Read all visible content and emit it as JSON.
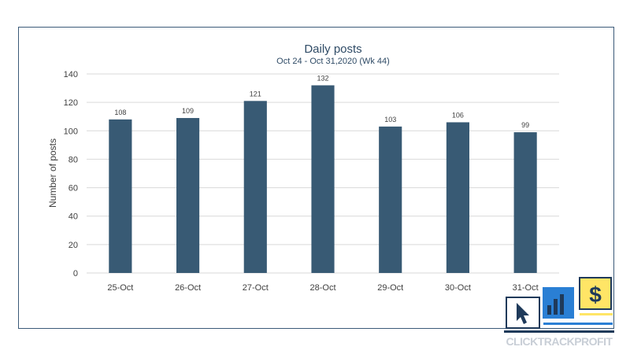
{
  "chart_data": {
    "type": "bar",
    "title": "Daily posts",
    "subtitle": "Oct 24 - Oct 31,2020 (Wk 44)",
    "xlabel": "",
    "ylabel": "Number of posts",
    "categories": [
      "25-Oct",
      "26-Oct",
      "27-Oct",
      "28-Oct",
      "29-Oct",
      "30-Oct",
      "31-Oct"
    ],
    "values": [
      108,
      109,
      121,
      132,
      103,
      106,
      99
    ],
    "ylim": [
      0,
      140
    ],
    "yticks": [
      0,
      20,
      40,
      60,
      80,
      100,
      120,
      140
    ],
    "grid": true,
    "bar_color": "#385a74",
    "grid_color": "#d9d9d9"
  },
  "logo": {
    "text": "CLICKTRACKPROFIT",
    "dollar_glyph": "$",
    "colors": {
      "navy": "#1f3a5a",
      "yellow": "#ffe566",
      "blue": "#2a7fd4"
    }
  }
}
